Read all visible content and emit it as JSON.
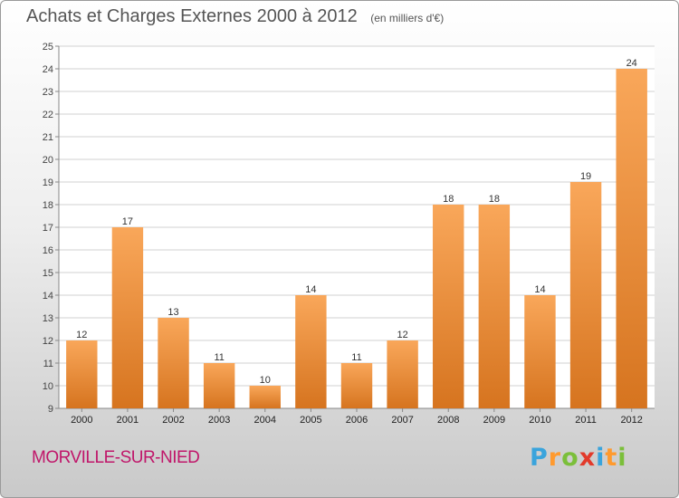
{
  "title": "Achats et Charges Externes 2000 à 2012",
  "subtitle": "(en milliers d'€)",
  "commune": "MORVILLE-SUR-NIED",
  "brand": {
    "text": "Proxiti",
    "letters": [
      {
        "ch": "P",
        "color": "#3aa4dc"
      },
      {
        "ch": "r",
        "color": "#ff9a2e"
      },
      {
        "ch": "o",
        "color": "#7bbf3a"
      },
      {
        "ch": "x",
        "color": "#e23a2b"
      },
      {
        "ch": "i",
        "color": "#3aa4dc"
      },
      {
        "ch": "t",
        "color": "#ff9a2e"
      },
      {
        "ch": "i",
        "color": "#7bbf3a"
      }
    ]
  },
  "colors": {
    "bar_light": "#f9a75a",
    "bar_dark": "#d6741f",
    "grid": "#d2d2d2"
  },
  "chart_data": {
    "type": "bar",
    "categories": [
      "2000",
      "2001",
      "2002",
      "2003",
      "2004",
      "2005",
      "2006",
      "2007",
      "2008",
      "2009",
      "2010",
      "2011",
      "2012"
    ],
    "values": [
      12,
      17,
      13,
      11,
      10,
      14,
      11,
      12,
      18,
      18,
      14,
      19,
      24
    ],
    "ylim": [
      9,
      25
    ],
    "yticks": [
      9,
      10,
      11,
      12,
      13,
      14,
      15,
      16,
      17,
      18,
      19,
      20,
      21,
      22,
      23,
      24,
      25
    ],
    "grid": true,
    "xlabel": "",
    "ylabel": ""
  }
}
